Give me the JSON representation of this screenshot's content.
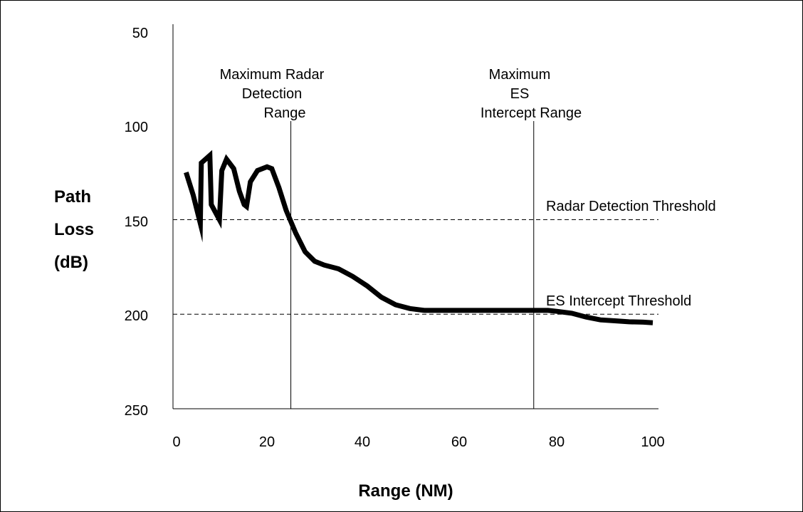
{
  "chart_data": {
    "type": "line",
    "title": "",
    "xlabel": "Range (NM)",
    "ylabel": [
      "Path",
      "Loss",
      "(dB)"
    ],
    "xlim": [
      0,
      100
    ],
    "ylim": [
      50,
      250
    ],
    "y_inverted": true,
    "xticks": [
      "0",
      "20",
      "40",
      "60",
      "80",
      "100"
    ],
    "yticks": [
      "50",
      "100",
      "150",
      "200",
      "250"
    ],
    "grid": false,
    "series": [
      {
        "x": [
          2,
          3.5,
          5,
          5.2,
          7,
          7.3,
          9,
          9.5,
          10.5,
          12,
          13.2,
          14.2,
          14.7,
          15.5,
          17,
          19,
          20,
          21.5,
          23,
          25,
          27,
          29,
          31,
          34,
          37,
          40,
          43,
          46,
          49,
          52,
          55,
          60,
          65,
          70,
          75,
          78,
          80,
          83,
          86,
          89,
          92,
          95,
          98,
          100
        ],
        "y": [
          125,
          137,
          152,
          120,
          116,
          142,
          150,
          124,
          118,
          123,
          135,
          142,
          143,
          130,
          124,
          122,
          123,
          133,
          145,
          157,
          167,
          172,
          174,
          176,
          180,
          185,
          191,
          195,
          197,
          198,
          198,
          198,
          198,
          198,
          198,
          198,
          198.5,
          199.5,
          201.5,
          203,
          203.5,
          204,
          204.2,
          204.5
        ]
      }
    ],
    "reference_lines": [
      {
        "orientation": "vertical",
        "x": 24,
        "label": [
          "Maximum Radar",
          "Detection",
          "Range"
        ]
      },
      {
        "orientation": "vertical",
        "x": 75,
        "label": [
          "Maximum",
          "ES",
          "Intercept Range"
        ]
      },
      {
        "orientation": "horizontal",
        "y": 150,
        "label": "Radar Detection Threshold"
      },
      {
        "orientation": "horizontal",
        "y": 200,
        "label": "ES Intercept Threshold"
      }
    ]
  }
}
